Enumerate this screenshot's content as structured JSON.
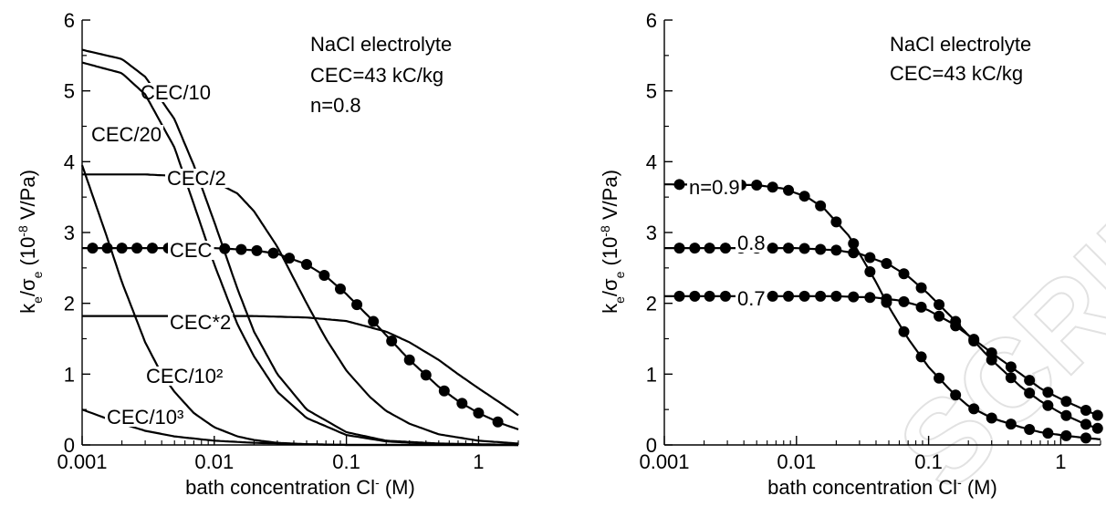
{
  "watermark": "SCRIPT",
  "chart_data": [
    {
      "type": "line",
      "xscale": "log",
      "xlim": [
        0.001,
        2
      ],
      "ylim": [
        0,
        6
      ],
      "xlabel": "bath concentration Cl",
      "xlabel_sup": "-",
      "xlabel_unit": "(M)",
      "ylabel": {
        "main": "k",
        "sub1": "e",
        "slash": "/σ",
        "sub2": "e",
        "mid": " (10",
        "sup": "-8",
        "end": " V/Pa)"
      },
      "xticks": [
        0.001,
        0.01,
        0.1,
        1
      ],
      "xtick_labels": [
        "0.001",
        "0.01",
        "0.1",
        "1"
      ],
      "yticks": [
        0,
        1,
        2,
        3,
        4,
        5,
        6
      ],
      "ytick_labels": [
        "0",
        "1",
        "2",
        "3",
        "4",
        "5",
        "6"
      ],
      "annotations": [
        "NaCl  electrolyte",
        "CEC=43 kC/kg",
        "n=0.8"
      ],
      "series": [
        {
          "label": "CEC/10",
          "x": [
            0.001,
            0.002,
            0.003,
            0.005,
            0.007,
            0.01,
            0.015,
            0.02,
            0.03,
            0.05,
            0.1,
            0.2,
            0.5,
            1,
            2
          ],
          "y": [
            5.58,
            5.45,
            5.2,
            4.6,
            3.95,
            3.15,
            2.2,
            1.6,
            1.0,
            0.5,
            0.18,
            0.06,
            0.02,
            0.01,
            0.0
          ]
        },
        {
          "label": "CEC/20",
          "x": [
            0.001,
            0.002,
            0.003,
            0.005,
            0.007,
            0.01,
            0.015,
            0.02,
            0.03,
            0.05,
            0.1,
            0.2,
            0.5,
            1,
            2
          ],
          "y": [
            5.4,
            5.25,
            4.95,
            4.2,
            3.4,
            2.55,
            1.7,
            1.25,
            0.75,
            0.38,
            0.14,
            0.05,
            0.01,
            0.0,
            0.0
          ]
        },
        {
          "label": "CEC/2",
          "x": [
            0.001,
            0.003,
            0.005,
            0.01,
            0.015,
            0.02,
            0.03,
            0.05,
            0.07,
            0.1,
            0.15,
            0.2,
            0.3,
            0.5,
            1,
            2
          ],
          "y": [
            3.82,
            3.82,
            3.8,
            3.72,
            3.55,
            3.3,
            2.8,
            2.0,
            1.5,
            1.05,
            0.68,
            0.48,
            0.3,
            0.15,
            0.06,
            0.02
          ]
        },
        {
          "label": "CEC",
          "x": [
            0.001,
            0.01,
            0.02,
            0.03,
            0.05,
            0.07,
            0.1,
            0.15,
            0.2,
            0.3,
            0.5,
            0.7,
            1,
            1.5,
            2
          ],
          "y": [
            2.78,
            2.78,
            2.75,
            2.7,
            2.55,
            2.38,
            2.13,
            1.8,
            1.55,
            1.2,
            0.82,
            0.62,
            0.45,
            0.3,
            0.22
          ],
          "markers_x": [
            0.0012,
            0.00155,
            0.002,
            0.0026,
            0.0034,
            0.0045,
            0.012,
            0.016,
            0.021,
            0.028,
            0.037,
            0.05,
            0.068,
            0.09,
            0.12,
            0.16,
            0.22,
            0.3,
            0.4,
            0.55,
            0.75,
            1.0,
            1.4
          ]
        },
        {
          "label": "CEC*2",
          "x": [
            0.001,
            0.02,
            0.05,
            0.1,
            0.2,
            0.3,
            0.5,
            0.7,
            1,
            1.5,
            2
          ],
          "y": [
            1.82,
            1.82,
            1.8,
            1.75,
            1.6,
            1.45,
            1.2,
            1.0,
            0.8,
            0.58,
            0.42
          ]
        },
        {
          "label": "CEC/10²",
          "x": [
            0.001,
            0.0015,
            0.002,
            0.003,
            0.004,
            0.005,
            0.007,
            0.01,
            0.015,
            0.02,
            0.03,
            0.05,
            0.1,
            0.3,
            1,
            2
          ],
          "y": [
            3.95,
            3.0,
            2.3,
            1.45,
            1.0,
            0.75,
            0.45,
            0.25,
            0.12,
            0.07,
            0.03,
            0.01,
            0.0,
            0.0,
            0.0,
            0.0
          ]
        },
        {
          "label": "CEC/10³",
          "x": [
            0.001,
            0.0015,
            0.002,
            0.003,
            0.005,
            0.01,
            0.02,
            0.05,
            0.1,
            1,
            2
          ],
          "y": [
            0.5,
            0.38,
            0.3,
            0.2,
            0.12,
            0.06,
            0.03,
            0.01,
            0.0,
            0.0,
            0.0
          ]
        }
      ]
    },
    {
      "type": "line",
      "xscale": "log",
      "xlim": [
        0.001,
        2
      ],
      "ylim": [
        0,
        6
      ],
      "xlabel": "bath concentration Cl",
      "xlabel_sup": "-",
      "xlabel_unit": "(M)",
      "ylabel": {
        "main": "k",
        "sub1": "e",
        "slash": "/σ",
        "sub2": "e",
        "mid": " (10",
        "sup": "-8",
        "end": " V/Pa)"
      },
      "xticks": [
        0.001,
        0.01,
        0.1,
        1
      ],
      "xtick_labels": [
        "0.001",
        "0.01",
        "0.1",
        "1"
      ],
      "yticks": [
        0,
        1,
        2,
        3,
        4,
        5,
        6
      ],
      "ytick_labels": [
        "0",
        "1",
        "2",
        "3",
        "4",
        "5",
        "6"
      ],
      "annotations": [
        "NaCl  electrolyte",
        "CEC=43 kC/kg"
      ],
      "series": [
        {
          "label": "n=0.9",
          "x": [
            0.001,
            0.005,
            0.008,
            0.012,
            0.016,
            0.02,
            0.025,
            0.03,
            0.04,
            0.05,
            0.07,
            0.1,
            0.15,
            0.2,
            0.3,
            0.5,
            0.7,
            1,
            1.5,
            2
          ],
          "y": [
            3.68,
            3.67,
            3.62,
            3.5,
            3.35,
            3.15,
            2.95,
            2.7,
            2.3,
            1.95,
            1.5,
            1.1,
            0.75,
            0.55,
            0.38,
            0.25,
            0.18,
            0.14,
            0.1,
            0.08
          ],
          "markers_x": [
            0.0013,
            0.0017,
            0.0022,
            0.0029,
            0.0038,
            0.005,
            0.0066,
            0.0087,
            0.0115,
            0.0152,
            0.02,
            0.027,
            0.036,
            0.048,
            0.065,
            0.088,
            0.12,
            0.16,
            0.22,
            0.3,
            0.42,
            0.58,
            0.8,
            1.1,
            1.55
          ]
        },
        {
          "label": "0.8",
          "x": [
            0.001,
            0.01,
            0.02,
            0.03,
            0.05,
            0.07,
            0.1,
            0.15,
            0.2,
            0.3,
            0.5,
            0.7,
            1,
            1.5,
            2
          ],
          "y": [
            2.78,
            2.78,
            2.75,
            2.7,
            2.55,
            2.38,
            2.13,
            1.8,
            1.55,
            1.2,
            0.82,
            0.62,
            0.45,
            0.3,
            0.22
          ],
          "markers_x": [
            0.0013,
            0.0017,
            0.0022,
            0.0029,
            0.0038,
            0.005,
            0.0066,
            0.0087,
            0.0115,
            0.0152,
            0.02,
            0.027,
            0.036,
            0.048,
            0.065,
            0.088,
            0.12,
            0.16,
            0.22,
            0.3,
            0.42,
            0.58,
            0.8,
            1.1,
            1.55,
            1.9
          ]
        },
        {
          "label": "0.7",
          "x": [
            0.001,
            0.02,
            0.04,
            0.06,
            0.08,
            0.1,
            0.15,
            0.2,
            0.3,
            0.5,
            0.7,
            1,
            1.5,
            2
          ],
          "y": [
            2.1,
            2.1,
            2.08,
            2.04,
            1.98,
            1.9,
            1.72,
            1.55,
            1.3,
            1.0,
            0.8,
            0.65,
            0.5,
            0.4
          ],
          "markers_x": [
            0.0013,
            0.0017,
            0.0022,
            0.0029,
            0.0038,
            0.005,
            0.0066,
            0.0087,
            0.0115,
            0.0152,
            0.02,
            0.027,
            0.036,
            0.048,
            0.065,
            0.088,
            0.12,
            0.16,
            0.22,
            0.3,
            0.42,
            0.58,
            0.8,
            1.1,
            1.55,
            1.9
          ]
        }
      ]
    }
  ]
}
